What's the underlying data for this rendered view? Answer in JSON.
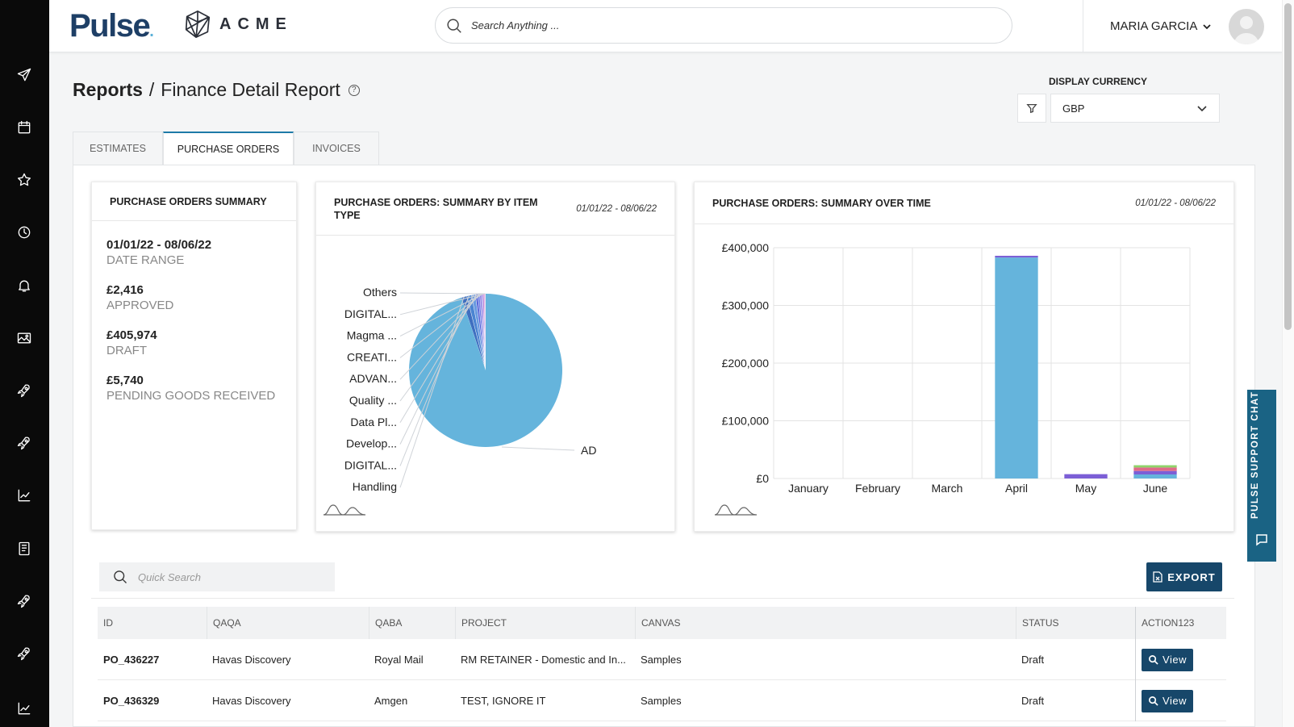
{
  "brand": {
    "logo": "Pulse",
    "logo_dot": ".",
    "client": "ACME"
  },
  "search": {
    "placeholder": "Search Anything ..."
  },
  "user": {
    "name": "MARIA GARCIA"
  },
  "breadcrumb": {
    "root": "Reports",
    "separator": "/",
    "page": "Finance Detail Report",
    "help": "?"
  },
  "currency": {
    "label": "DISPLAY CURRENCY",
    "value": "GBP"
  },
  "tabs": [
    {
      "label": "ESTIMATES",
      "active": false
    },
    {
      "label": "PURCHASE ORDERS",
      "active": true
    },
    {
      "label": "INVOICES",
      "active": false
    }
  ],
  "summary": {
    "title": "PURCHASE ORDERS SUMMARY",
    "items": [
      {
        "value": "01/01/22 - 08/06/22",
        "label": "DATE RANGE"
      },
      {
        "value": "£2,416",
        "label": "APPROVED"
      },
      {
        "value": "£405,974",
        "label": "DRAFT"
      },
      {
        "value": "£5,740",
        "label": "PENDING GOODS RECEIVED"
      }
    ]
  },
  "pie_card": {
    "title": "PURCHASE ORDERS: SUMMARY BY ITEM TYPE",
    "date_range": "01/01/22 - 08/06/22"
  },
  "bar_card": {
    "title": "PURCHASE ORDERS: SUMMARY OVER TIME",
    "date_range": "01/01/22 - 08/06/22"
  },
  "chart_data": [
    {
      "type": "pie",
      "labels": [
        "Others",
        "DIGITAL...",
        "Magma ...",
        "CREATI...",
        "ADVAN...",
        "Quality ...",
        "Data Pl...",
        "Develop...",
        "DIGITAL...",
        "Handling",
        "AD"
      ],
      "values": [
        0.15,
        0.2,
        0.25,
        0.3,
        0.35,
        0.4,
        0.5,
        0.8,
        1.0,
        1.2,
        94.85
      ],
      "colors": [
        "#e8b6e2",
        "#d58ad1",
        "#b772d4",
        "#9b8de8",
        "#8a7be0",
        "#6d7ee6",
        "#5563d8",
        "#6a9ae0",
        "#4b84d2",
        "#3f6fc0",
        "#65b4dc"
      ]
    },
    {
      "type": "bar",
      "categories": [
        "January",
        "February",
        "March",
        "April",
        "May",
        "June"
      ],
      "series": [
        {
          "values": [
            0,
            0,
            0,
            383000,
            0,
            7000
          ],
          "color": "#65b4dc"
        },
        {
          "values": [
            0,
            0,
            0,
            3000,
            7500,
            6000
          ],
          "color": "#7c5fd6"
        },
        {
          "values": [
            0,
            0,
            0,
            0,
            0,
            6000
          ],
          "color": "#e06a8a"
        },
        {
          "values": [
            0,
            0,
            0,
            0,
            0,
            4000
          ],
          "color": "#8fd46a"
        }
      ],
      "y_ticks": [
        "£0",
        "£100,000",
        "£200,000",
        "£300,000",
        "£400,000"
      ],
      "ylim": [
        0,
        400000
      ],
      "grid": true
    }
  ],
  "table": {
    "quick_search_placeholder": "Quick Search",
    "export_label": "EXPORT",
    "columns": [
      "ID",
      "QAQA",
      "QABA",
      "PROJECT",
      "CANVAS",
      "STATUS",
      "ACTION123"
    ],
    "rows": [
      {
        "id": "PO_436227",
        "qaqa": "Havas Discovery",
        "qaba": "Royal Mail",
        "project": "RM RETAINER - Domestic and In...",
        "canvas": "Samples",
        "status": "Draft",
        "action": "View"
      },
      {
        "id": "PO_436329",
        "qaqa": "Havas Discovery",
        "qaba": "Amgen",
        "project": "TEST, IGNORE IT",
        "canvas": "Samples",
        "status": "Draft",
        "action": "View"
      }
    ]
  },
  "support_chat": {
    "label": "PULSE SUPPORT CHAT"
  }
}
